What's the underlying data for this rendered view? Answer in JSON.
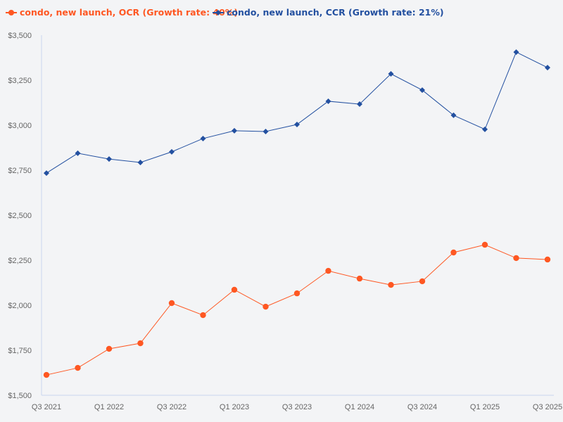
{
  "chart_data": {
    "type": "line",
    "title": "",
    "xlabel": "",
    "ylabel": "",
    "ylim": [
      1500,
      3500
    ],
    "yticks": [
      1500,
      1750,
      2000,
      2250,
      2500,
      2750,
      3000,
      3250,
      3500
    ],
    "ytick_labels": [
      "$1,500",
      "$1,750",
      "$2,000",
      "$2,250",
      "$2,500",
      "$2,750",
      "$3,000",
      "$3,250",
      "$3,500"
    ],
    "categories": [
      "Q3 2021",
      "Q4 2021",
      "Q1 2022",
      "Q2 2022",
      "Q3 2022",
      "Q4 2022",
      "Q1 2023",
      "Q2 2023",
      "Q3 2023",
      "Q4 2023",
      "Q1 2024",
      "Q2 2024",
      "Q3 2024",
      "Q4 2024",
      "Q1 2025",
      "Q2 2025",
      "Q3 2025"
    ],
    "xtick_labels": [
      "Q3 2021",
      "",
      "Q1 2022",
      "",
      "Q3 2022",
      "",
      "Q1 2023",
      "",
      "Q3 2023",
      "",
      "Q1 2024",
      "",
      "Q3 2024",
      "",
      "Q1 2025",
      "",
      "Q3 2025"
    ],
    "grid": false,
    "legend_position": "top-left",
    "series": [
      {
        "name": "condo, new launch, OCR (Growth rate: 40%)",
        "color": "#fe5722",
        "marker": "circle",
        "values": [
          1613,
          1652,
          1758,
          1789,
          2012,
          1945,
          2086,
          1992,
          2066,
          2191,
          2148,
          2113,
          2133,
          2293,
          2336,
          2262,
          2254
        ]
      },
      {
        "name": "condo, new launch, CCR (Growth rate: 21%)",
        "color": "#2350a0",
        "marker": "diamond",
        "values": [
          2734,
          2844,
          2812,
          2793,
          2852,
          2926,
          2969,
          2965,
          3004,
          3133,
          3117,
          3285,
          3195,
          3055,
          2977,
          3406,
          3320
        ]
      }
    ]
  }
}
